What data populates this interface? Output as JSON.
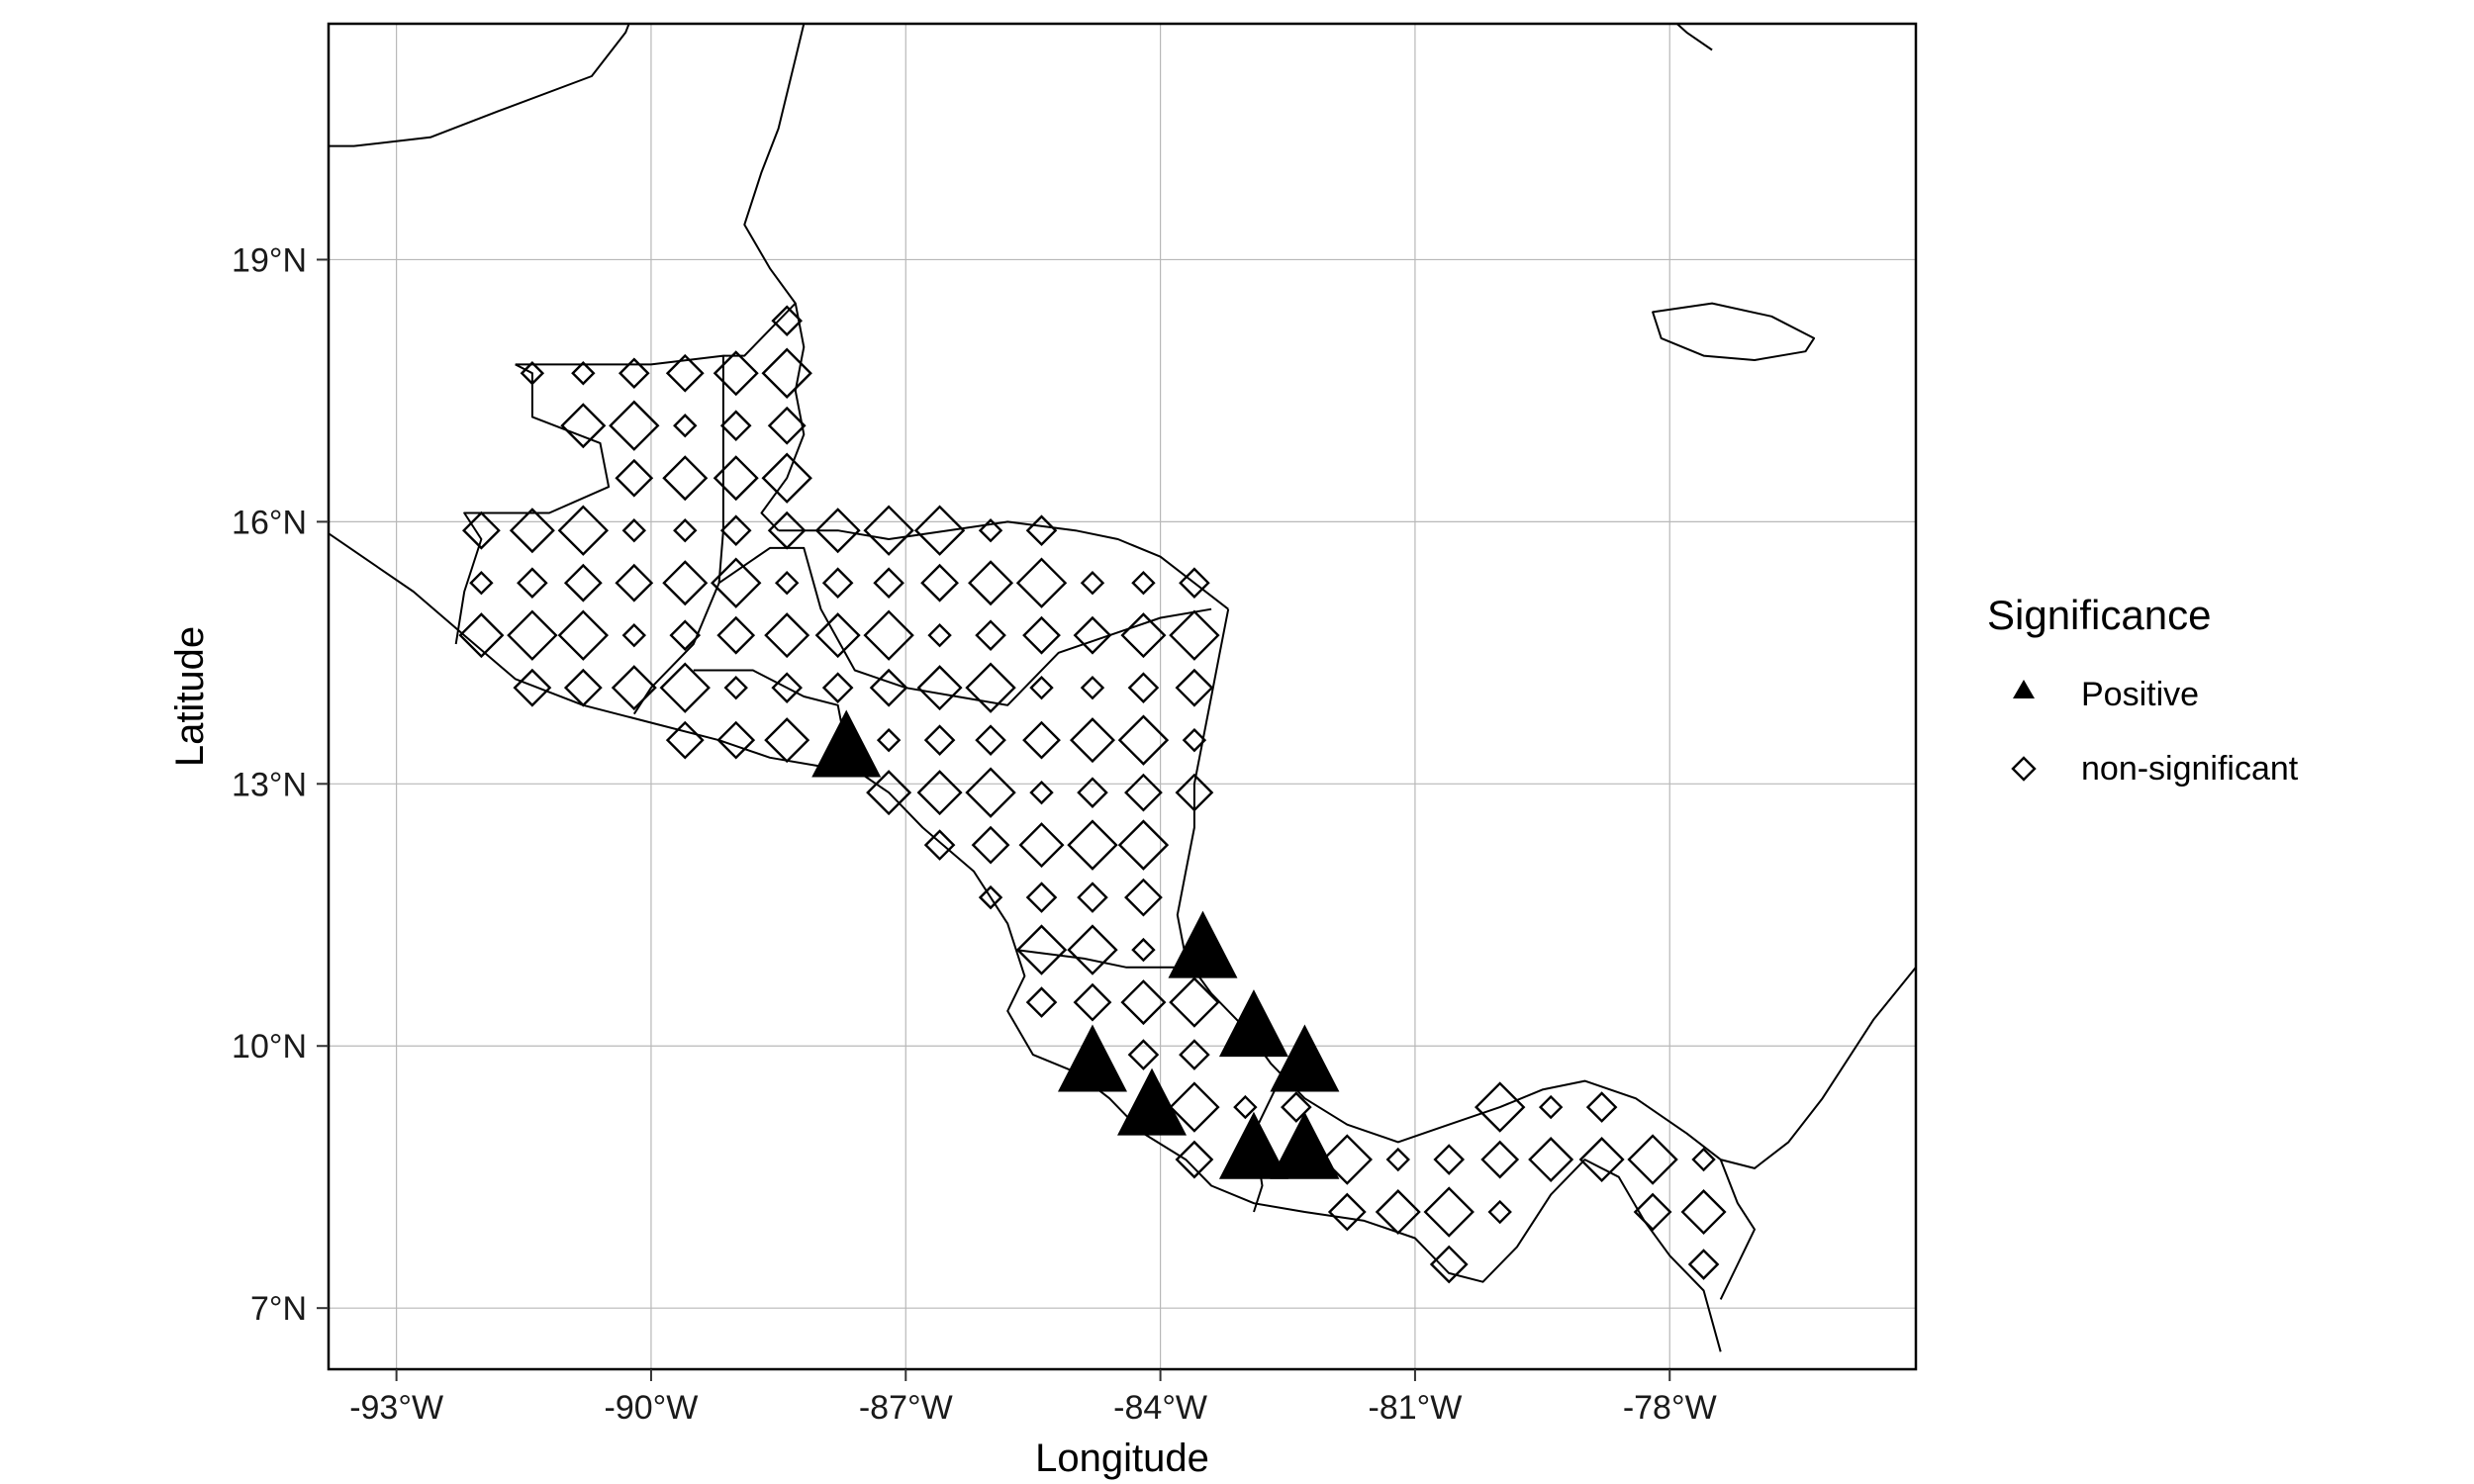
{
  "chart_data": {
    "type": "scatter",
    "x_label": "Longitude",
    "y_label": "Latitude",
    "xlim": [
      -93.8,
      -75.1
    ],
    "ylim": [
      6.3,
      21.7
    ],
    "x_ticks": [
      {
        "value": -93,
        "label": "-93°W"
      },
      {
        "value": -90,
        "label": "-90°W"
      },
      {
        "value": -87,
        "label": "-87°W"
      },
      {
        "value": -84,
        "label": "-84°W"
      },
      {
        "value": -81,
        "label": "-81°W"
      },
      {
        "value": -78,
        "label": "-78°W"
      }
    ],
    "y_ticks": [
      {
        "value": 7,
        "label": "7°N"
      },
      {
        "value": 10,
        "label": "10°N"
      },
      {
        "value": 13,
        "label": "13°N"
      },
      {
        "value": 16,
        "label": "16°N"
      },
      {
        "value": 19,
        "label": "19°N"
      }
    ],
    "grid": true,
    "legend": {
      "title": "Significance",
      "position": "right",
      "entries": [
        "Positive",
        "non-significant"
      ]
    },
    "series": [
      {
        "name": "Positive",
        "marker": "filled-triangle",
        "points": [
          [
            -87.7,
            13.4
          ],
          [
            -83.5,
            11.1
          ],
          [
            -82.9,
            10.2
          ],
          [
            -82.3,
            9.8
          ],
          [
            -84.8,
            9.8
          ],
          [
            -84.1,
            9.3
          ],
          [
            -82.9,
            8.8
          ],
          [
            -82.3,
            8.8
          ]
        ]
      },
      {
        "name": "non-significant",
        "marker": "open-diamond",
        "points": []
      }
    ],
    "land_sizes": [
      0.25,
      0.45,
      0.65,
      0.85,
      1.0
    ]
  }
}
